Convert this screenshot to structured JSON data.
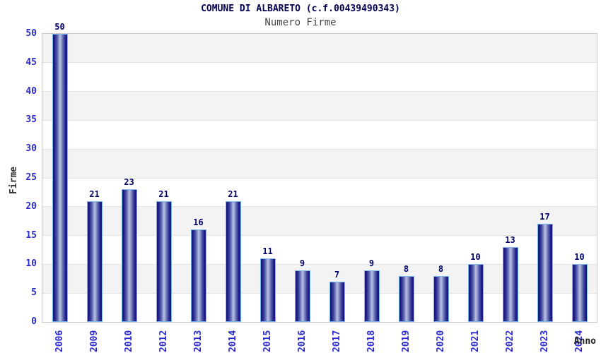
{
  "chart_data": {
    "type": "bar",
    "title": "COMUNE DI ALBARETO (c.f.00439490343)",
    "subtitle": "Numero Firme",
    "xlabel": "Anno",
    "ylabel": "Firme",
    "categories": [
      "2006",
      "2009",
      "2010",
      "2012",
      "2013",
      "2014",
      "2015",
      "2016",
      "2017",
      "2018",
      "2019",
      "2020",
      "2021",
      "2022",
      "2023",
      "2024"
    ],
    "values": [
      50,
      21,
      23,
      21,
      16,
      21,
      11,
      9,
      7,
      9,
      8,
      8,
      10,
      13,
      17,
      10
    ],
    "ylim": [
      0,
      50
    ],
    "ytick_step": 5,
    "grid": true,
    "legend": "none",
    "value_labels_shown": true
  },
  "colors": {
    "title": "#000051",
    "subtitle": "#474747",
    "tick_label": "#2a2ad0",
    "value_label": "#00006a",
    "bar_dark": "#131378",
    "bar_highlight": "#b9c0e0",
    "bar_border": "#79b6ec",
    "band_gray": "#f3f3f3",
    "gridline": "#e3e3e3",
    "plot_border": "#c9c9c9",
    "background": "#ffffff"
  }
}
